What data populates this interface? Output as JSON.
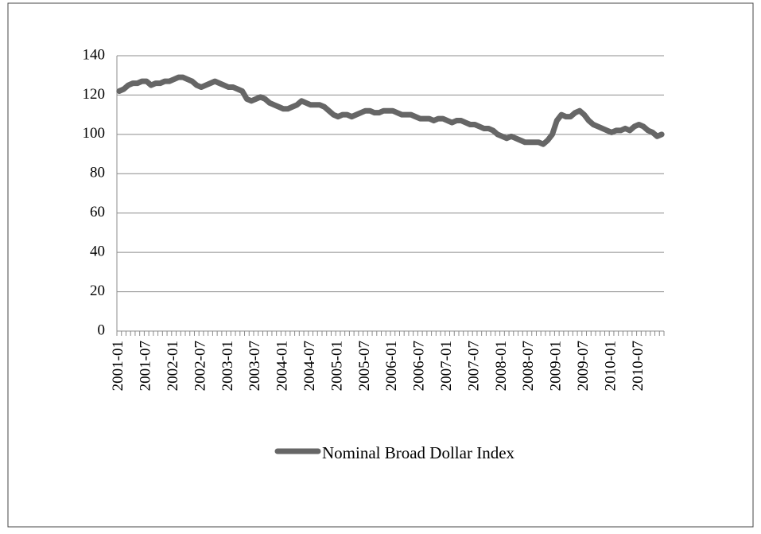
{
  "chart_data": {
    "type": "line",
    "categories": [
      "2001-01",
      null,
      null,
      null,
      null,
      null,
      "2001-07",
      null,
      null,
      null,
      null,
      null,
      "2002-01",
      null,
      null,
      null,
      null,
      null,
      "2002-07",
      null,
      null,
      null,
      null,
      null,
      "2003-01",
      null,
      null,
      null,
      null,
      null,
      "2003-07",
      null,
      null,
      null,
      null,
      null,
      "2004-01",
      null,
      null,
      null,
      null,
      null,
      "2004-07",
      null,
      null,
      null,
      null,
      null,
      "2005-01",
      null,
      null,
      null,
      null,
      null,
      "2005-07",
      null,
      null,
      null,
      null,
      null,
      "2006-01",
      null,
      null,
      null,
      null,
      null,
      "2006-07",
      null,
      null,
      null,
      null,
      null,
      "2007-01",
      null,
      null,
      null,
      null,
      null,
      "2007-07",
      null,
      null,
      null,
      null,
      null,
      "2008-01",
      null,
      null,
      null,
      null,
      null,
      "2008-07",
      null,
      null,
      null,
      null,
      null,
      "2009-01",
      null,
      null,
      null,
      null,
      null,
      "2009-07",
      null,
      null,
      null,
      null,
      null,
      "2010-01",
      null,
      null,
      null,
      null,
      null,
      "2010-07",
      null,
      null,
      null,
      null,
      null
    ],
    "series": [
      {
        "name": "Nominal Broad Dollar Index",
        "color": "#666666",
        "values": [
          122,
          123,
          125,
          126,
          126,
          127,
          127,
          125,
          126,
          126,
          127,
          127,
          128,
          129,
          129,
          128,
          127,
          125,
          124,
          125,
          126,
          127,
          126,
          125,
          124,
          124,
          123,
          122,
          118,
          117,
          118,
          119,
          118,
          116,
          115,
          114,
          113,
          113,
          114,
          115,
          117,
          116,
          115,
          115,
          115,
          114,
          112,
          110,
          109,
          110,
          110,
          109,
          110,
          111,
          112,
          112,
          111,
          111,
          112,
          112,
          112,
          111,
          110,
          110,
          110,
          109,
          108,
          108,
          108,
          107,
          108,
          108,
          107,
          106,
          107,
          107,
          106,
          105,
          105,
          104,
          103,
          103,
          102,
          100,
          99,
          98,
          99,
          98,
          97,
          96,
          96,
          96,
          96,
          95,
          97,
          100,
          107,
          110,
          109,
          109,
          111,
          112,
          110,
          107,
          105,
          104,
          103,
          102,
          101,
          102,
          102,
          103,
          102,
          104,
          105,
          104,
          102,
          101,
          99,
          100
        ]
      }
    ],
    "ylim": [
      0,
      140
    ],
    "yticks": [
      0,
      20,
      40,
      60,
      80,
      100,
      120,
      140
    ],
    "grid": true,
    "legend": "bottom"
  }
}
